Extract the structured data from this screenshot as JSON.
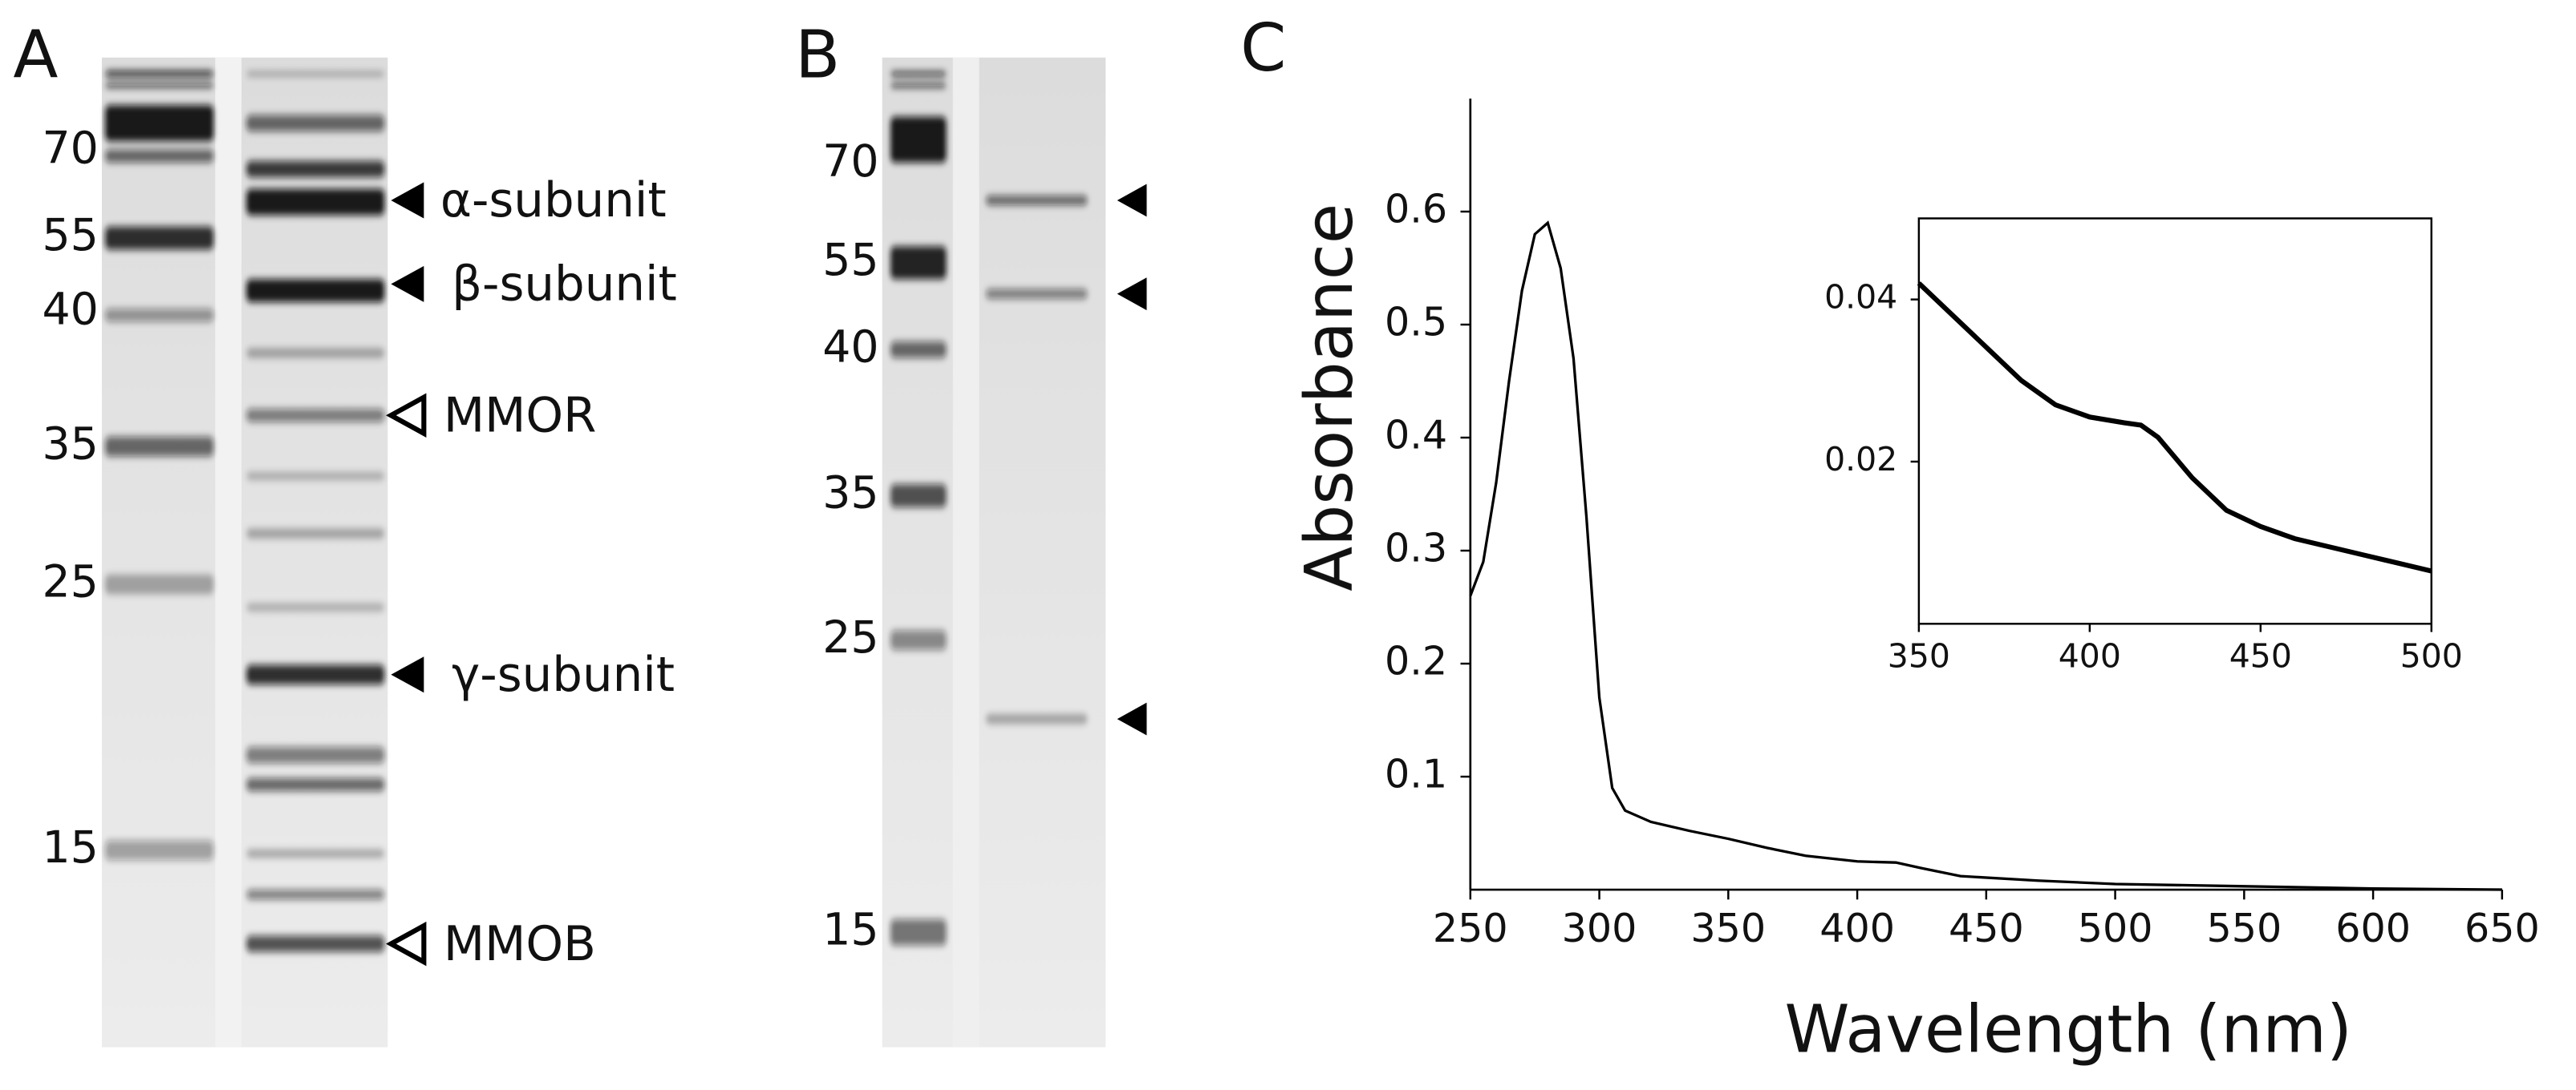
{
  "gel_a": {
    "letter": "A",
    "markers": [
      70,
      55,
      40,
      35,
      25,
      15
    ],
    "bands": [
      {
        "label": "α-subunit",
        "marker": "filled"
      },
      {
        "label": "β-subunit",
        "marker": "filled"
      },
      {
        "label": "MMOR",
        "marker": "open"
      },
      {
        "label": "γ-subunit",
        "marker": "filled"
      },
      {
        "label": "MMOB",
        "marker": "open"
      }
    ]
  },
  "gel_b": {
    "letter": "B",
    "markers": [
      70,
      55,
      40,
      35,
      25,
      15
    ]
  },
  "chart_data": [
    {
      "type": "line",
      "panel": "C",
      "xlabel": "Wavelength (nm)",
      "ylabel": "Absorbance",
      "x": [
        250,
        255,
        260,
        265,
        270,
        275,
        280,
        285,
        290,
        295,
        300,
        305,
        310,
        320,
        335,
        350,
        365,
        380,
        400,
        415,
        425,
        440,
        470,
        500,
        550,
        600,
        650
      ],
      "values": [
        0.26,
        0.29,
        0.36,
        0.45,
        0.53,
        0.58,
        0.59,
        0.55,
        0.47,
        0.33,
        0.17,
        0.09,
        0.07,
        0.06,
        0.052,
        0.045,
        0.037,
        0.03,
        0.025,
        0.024,
        0.019,
        0.012,
        0.008,
        0.005,
        0.003,
        0.001,
        0
      ],
      "color": "#000000",
      "xlim": [
        250,
        650
      ],
      "xticks": [
        250,
        300,
        350,
        400,
        450,
        500,
        550,
        600,
        650
      ],
      "ylim": [
        0,
        0.7
      ],
      "yticks": [
        0.1,
        0.2,
        0.3,
        0.4,
        0.5,
        0.6
      ]
    },
    {
      "type": "line",
      "x": [
        350,
        360,
        370,
        380,
        390,
        400,
        410,
        415,
        420,
        430,
        440,
        450,
        460,
        470,
        480,
        490,
        500
      ],
      "values": [
        0.042,
        0.038,
        0.034,
        0.03,
        0.027,
        0.0255,
        0.0248,
        0.0245,
        0.023,
        0.018,
        0.014,
        0.012,
        0.0105,
        0.0095,
        0.0085,
        0.0075,
        0.0065
      ],
      "color": "#000000",
      "xlim": [
        350,
        500
      ],
      "xticks": [
        350,
        400,
        450,
        500
      ],
      "ylim": [
        0,
        0.05
      ],
      "yticks": [
        0.02,
        0.04
      ]
    }
  ]
}
